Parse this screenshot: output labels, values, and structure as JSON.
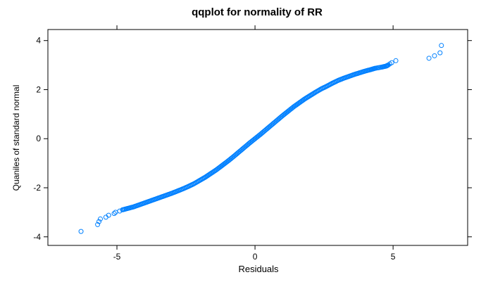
{
  "chart_data": {
    "type": "scatter",
    "title": "qqplot for normality of RR",
    "xlabel": "Residuals",
    "ylabel": "Quaniles of standard normal",
    "xlim": [
      -7.5,
      7.7
    ],
    "ylim": [
      -4.35,
      4.45
    ],
    "xticks": [
      -5,
      0,
      5
    ],
    "xtick_labels": [
      "-5",
      "0",
      "5"
    ],
    "yticks": [
      -4,
      -2,
      0,
      2,
      4
    ],
    "ytick_labels": [
      "-4",
      "-2",
      "0",
      "2",
      "4"
    ],
    "grid": false,
    "legend": "none",
    "marker": "open-circle",
    "point_color": "#0080ff",
    "series": [
      {
        "points": [
          [
            -6.3,
            -3.78
          ],
          [
            -5.7,
            -3.5
          ],
          [
            -5.65,
            -3.38
          ],
          [
            -5.6,
            -3.27
          ],
          [
            -5.4,
            -3.2
          ],
          [
            -5.3,
            -3.12
          ],
          [
            -5.1,
            -3.05
          ],
          [
            -5.05,
            -3.0
          ],
          [
            -4.9,
            -2.95
          ],
          [
            -4.8,
            -2.9
          ],
          [
            -4.6,
            -2.84
          ],
          [
            -4.4,
            -2.78
          ],
          [
            -4.2,
            -2.7
          ],
          [
            -4.0,
            -2.62
          ],
          [
            -3.8,
            -2.54
          ],
          [
            -3.6,
            -2.46
          ],
          [
            -3.4,
            -2.38
          ],
          [
            -3.2,
            -2.3
          ],
          [
            -3.0,
            -2.22
          ],
          [
            -2.8,
            -2.13
          ],
          [
            -2.6,
            -2.04
          ],
          [
            -2.4,
            -1.94
          ],
          [
            -2.2,
            -1.83
          ],
          [
            -2.0,
            -1.7
          ],
          [
            -1.8,
            -1.57
          ],
          [
            -1.6,
            -1.42
          ],
          [
            -1.4,
            -1.27
          ],
          [
            -1.2,
            -1.1
          ],
          [
            -1.0,
            -0.93
          ],
          [
            -0.8,
            -0.75
          ],
          [
            -0.6,
            -0.56
          ],
          [
            -0.4,
            -0.37
          ],
          [
            -0.2,
            -0.18
          ],
          [
            0.0,
            0.0
          ],
          [
            0.2,
            0.18
          ],
          [
            0.4,
            0.37
          ],
          [
            0.6,
            0.56
          ],
          [
            0.8,
            0.75
          ],
          [
            1.0,
            0.94
          ],
          [
            1.2,
            1.12
          ],
          [
            1.4,
            1.3
          ],
          [
            1.6,
            1.46
          ],
          [
            1.8,
            1.62
          ],
          [
            2.0,
            1.76
          ],
          [
            2.2,
            1.9
          ],
          [
            2.4,
            2.03
          ],
          [
            2.6,
            2.14
          ],
          [
            2.8,
            2.26
          ],
          [
            3.0,
            2.37
          ],
          [
            3.2,
            2.46
          ],
          [
            3.4,
            2.54
          ],
          [
            3.6,
            2.62
          ],
          [
            3.8,
            2.69
          ],
          [
            4.0,
            2.76
          ],
          [
            4.2,
            2.82
          ],
          [
            4.35,
            2.87
          ],
          [
            4.6,
            2.92
          ],
          [
            4.75,
            2.96
          ],
          [
            4.82,
            3.0
          ],
          [
            4.88,
            3.05
          ],
          [
            4.95,
            3.1
          ],
          [
            5.1,
            3.18
          ],
          [
            6.3,
            3.28
          ],
          [
            6.5,
            3.38
          ],
          [
            6.7,
            3.5
          ],
          [
            6.75,
            3.8
          ]
        ]
      }
    ]
  }
}
